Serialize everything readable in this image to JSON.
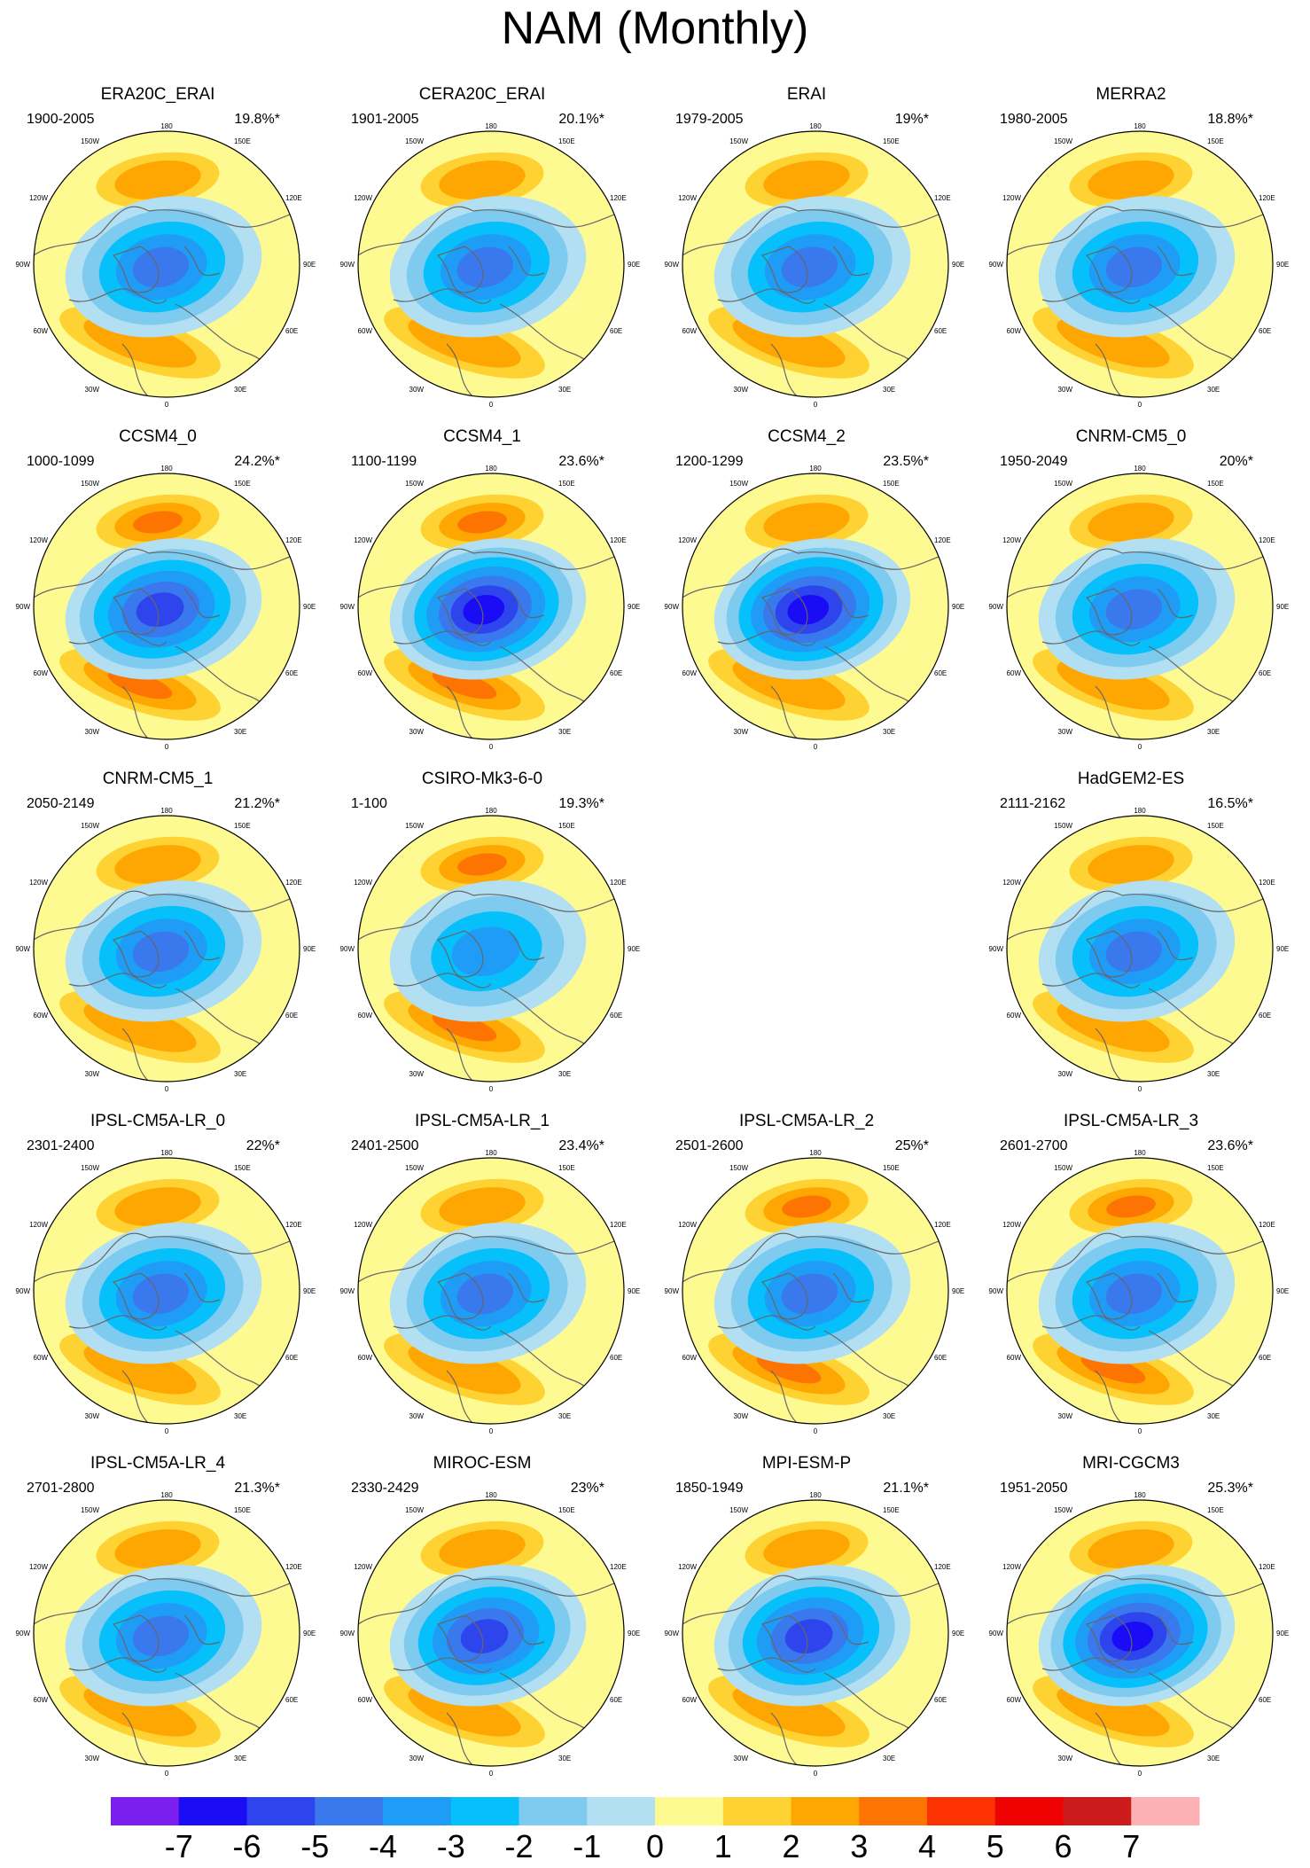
{
  "title": "NAM (Monthly)",
  "colors": {
    "coast": "#666666",
    "levels": [
      "#7b1fee",
      "#1a0cf5",
      "#2e44ec",
      "#3a78ee",
      "#1f9cf5",
      "#06c0fb",
      "#7fcbf0",
      "#b3dff3",
      "#fefa92",
      "#fed232",
      "#fea702",
      "#fd7403",
      "#fc3203",
      "#ee0202",
      "#cc1b1b",
      "#feb1b4"
    ]
  },
  "chart_data": {
    "type": "polar-contour-grid",
    "title": "NAM (Monthly)",
    "colorbar": {
      "ticks": [
        "-7",
        "-6",
        "-5",
        "-4",
        "-3",
        "-2",
        "-1",
        "0",
        "1",
        "2",
        "3",
        "4",
        "5",
        "6",
        "7"
      ]
    },
    "map_labels": {
      "top": "180",
      "bottom": "0",
      "left": "90W",
      "right": "90E",
      "upper_left": [
        "150W",
        "120W"
      ],
      "upper_right": [
        "150E",
        "120E"
      ],
      "lower_left": [
        "60W",
        "30W"
      ],
      "lower_right": [
        "60E",
        "30E"
      ]
    },
    "panels": [
      {
        "name": "ERA20C_ERAI",
        "period": "1900-2005",
        "variance": "19.8%*",
        "max_level": 5,
        "pos_level": 2,
        "row": 0,
        "col": 0
      },
      {
        "name": "CERA20C_ERAI",
        "period": "1901-2005",
        "variance": "20.1%*",
        "max_level": 5,
        "pos_level": 2,
        "row": 0,
        "col": 1
      },
      {
        "name": "ERAI",
        "period": "1979-2005",
        "variance": "19%*",
        "max_level": 5,
        "pos_level": 2,
        "row": 0,
        "col": 2
      },
      {
        "name": "MERRA2",
        "period": "1980-2005",
        "variance": "18.8%*",
        "max_level": 5,
        "pos_level": 2,
        "row": 0,
        "col": 3
      },
      {
        "name": "CCSM4_0",
        "period": "1000-1099",
        "variance": "24.2%*",
        "max_level": 6,
        "pos_level": 3,
        "row": 1,
        "col": 0
      },
      {
        "name": "CCSM4_1",
        "period": "1100-1199",
        "variance": "23.6%*",
        "max_level": 7,
        "pos_level": 3,
        "row": 1,
        "col": 1
      },
      {
        "name": "CCSM4_2",
        "period": "1200-1299",
        "variance": "23.5%*",
        "max_level": 7,
        "pos_level": 2,
        "row": 1,
        "col": 2
      },
      {
        "name": "CNRM-CM5_0",
        "period": "1950-2049",
        "variance": "20%*",
        "max_level": 5,
        "pos_level": 2,
        "row": 1,
        "col": 3
      },
      {
        "name": "CNRM-CM5_1",
        "period": "2050-2149",
        "variance": "21.2%*",
        "max_level": 5,
        "pos_level": 2,
        "row": 2,
        "col": 0
      },
      {
        "name": "CSIRO-Mk3-6-0",
        "period": "1-100",
        "variance": "19.3%*",
        "max_level": 4,
        "pos_level": 3,
        "row": 2,
        "col": 1
      },
      {
        "name": "HadGEM2-ES",
        "period": "2111-2162",
        "variance": "16.5%*",
        "max_level": 5,
        "pos_level": 2,
        "row": 2,
        "col": 3
      },
      {
        "name": "IPSL-CM5A-LR_0",
        "period": "2301-2400",
        "variance": "22%*",
        "max_level": 5,
        "pos_level": 2,
        "row": 3,
        "col": 0
      },
      {
        "name": "IPSL-CM5A-LR_1",
        "period": "2401-2500",
        "variance": "23.4%*",
        "max_level": 5,
        "pos_level": 2,
        "row": 3,
        "col": 1
      },
      {
        "name": "IPSL-CM5A-LR_2",
        "period": "2501-2600",
        "variance": "25%*",
        "max_level": 5,
        "pos_level": 3,
        "row": 3,
        "col": 2
      },
      {
        "name": "IPSL-CM5A-LR_3",
        "period": "2601-2700",
        "variance": "23.6%*",
        "max_level": 5,
        "pos_level": 3,
        "row": 3,
        "col": 3
      },
      {
        "name": "IPSL-CM5A-LR_4",
        "period": "2701-2800",
        "variance": "21.3%*",
        "max_level": 5,
        "pos_level": 2,
        "row": 4,
        "col": 0
      },
      {
        "name": "MIROC-ESM",
        "period": "2330-2429",
        "variance": "23%*",
        "max_level": 6,
        "pos_level": 2,
        "row": 4,
        "col": 1
      },
      {
        "name": "MPI-ESM-P",
        "period": "1850-1949",
        "variance": "21.1%*",
        "max_level": 6,
        "pos_level": 2,
        "row": 4,
        "col": 2
      },
      {
        "name": "MRI-CGCM3",
        "period": "1951-2050",
        "variance": "25.3%*",
        "max_level": 7,
        "pos_level": 2,
        "row": 4,
        "col": 3
      }
    ]
  }
}
